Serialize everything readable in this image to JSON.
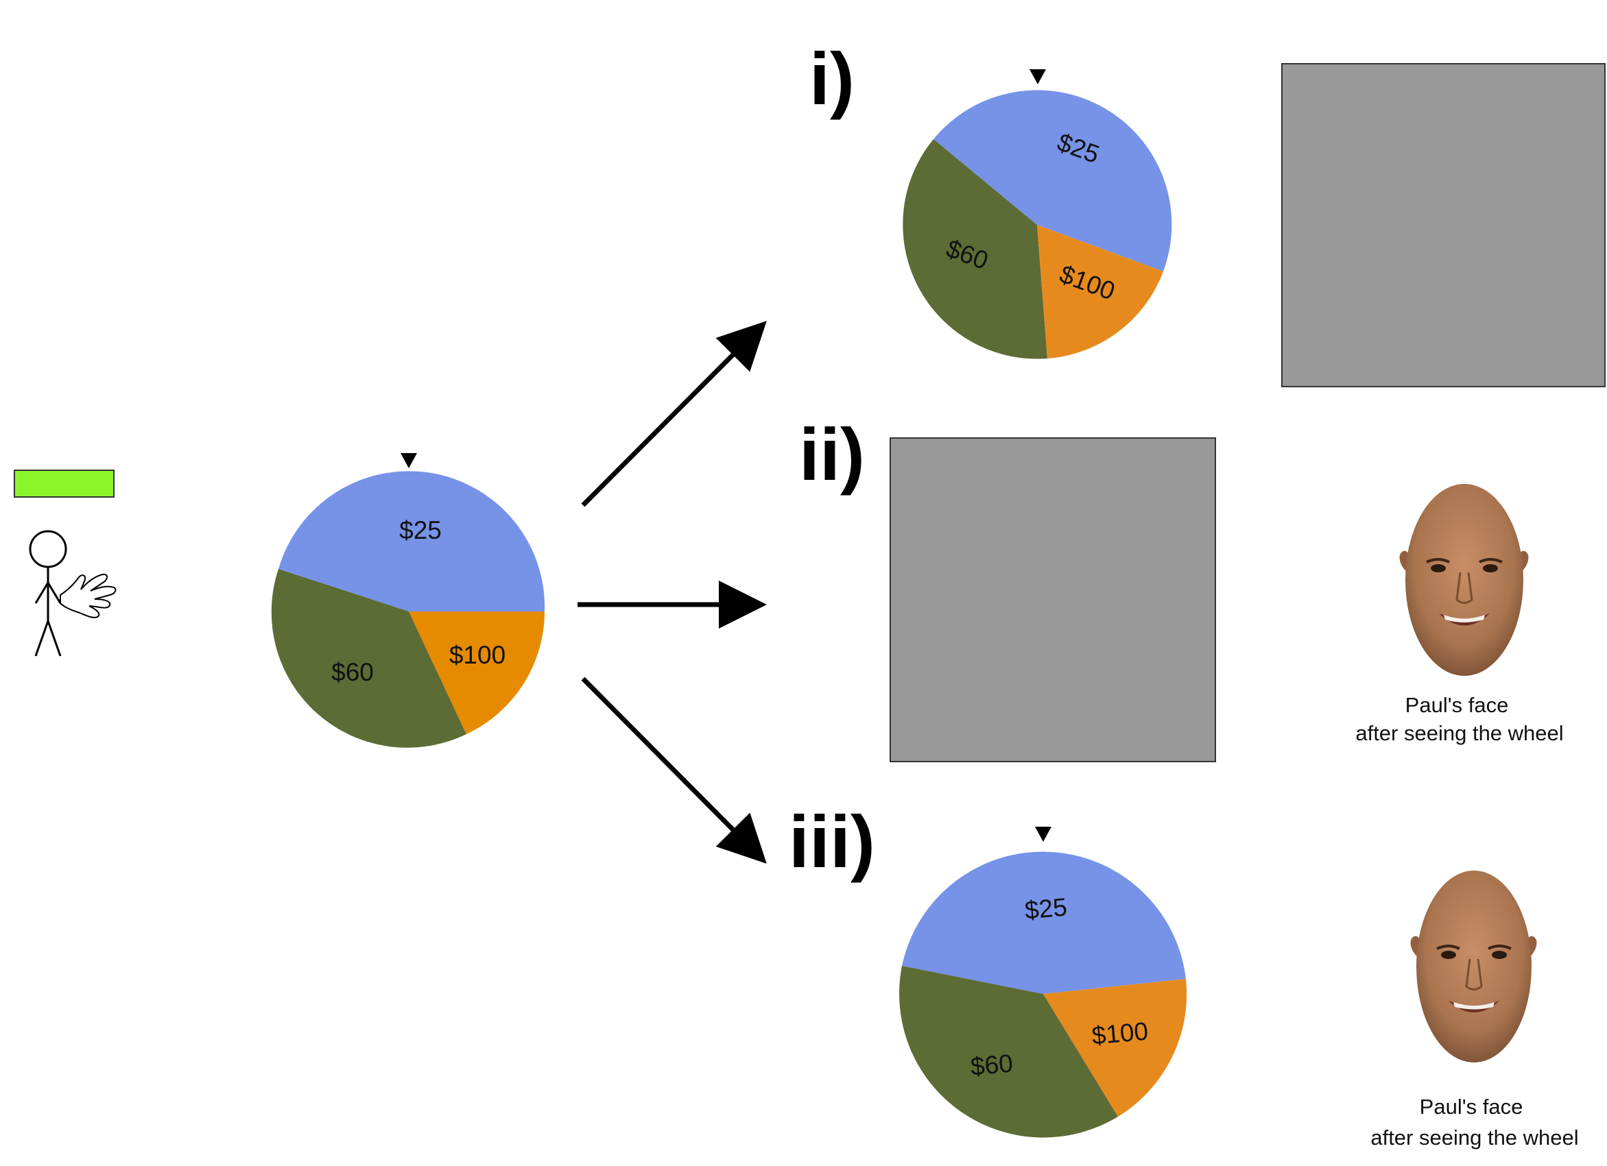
{
  "colors": {
    "blue": "#7693e8",
    "green": "#5d6b35",
    "orange": "#e68a1e",
    "gray": "#999999",
    "bar": "#8cf52a",
    "skin": "#a9744f"
  },
  "panels": [
    "i)",
    "ii)",
    "iii)"
  ],
  "wheel_labels": {
    "low": "$25",
    "mid": "$60",
    "high": "$100"
  },
  "icons": [
    "person-icon",
    "hand-icon",
    "pointer-icon",
    "arrow-icon",
    "face-icon"
  ],
  "caption": {
    "line1": "Paul's face",
    "line2": "after seeing the wheel"
  }
}
